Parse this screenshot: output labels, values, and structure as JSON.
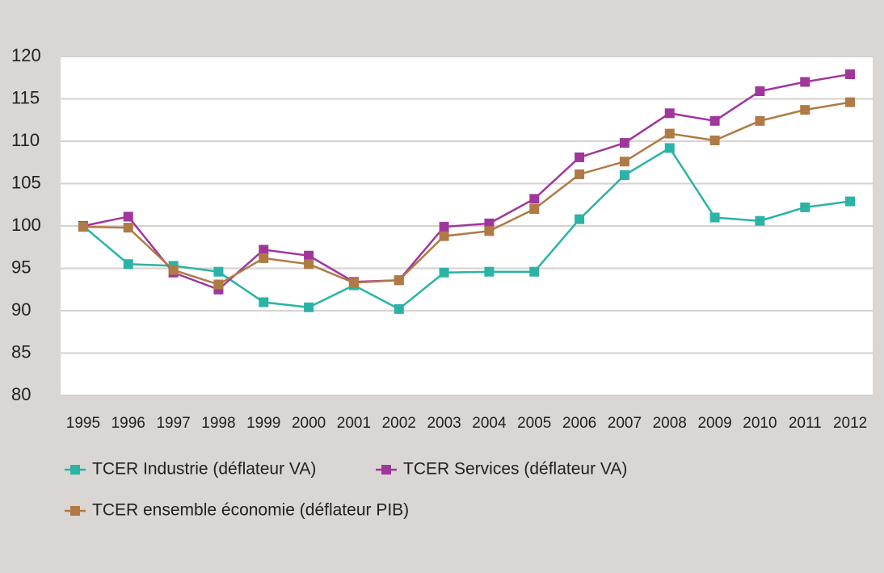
{
  "chart_data": {
    "type": "line",
    "categories": [
      "1995",
      "1996",
      "1997",
      "1998",
      "1999",
      "2000",
      "2001",
      "2002",
      "2003",
      "2004",
      "2005",
      "2006",
      "2007",
      "2008",
      "2009",
      "2010",
      "2011",
      "2012"
    ],
    "series": [
      {
        "name": "TCER Industrie (déflateur VA)",
        "color": "#2bb3a6",
        "values": [
          100,
          95.5,
          95.3,
          94.6,
          91,
          90.4,
          93,
          90.2,
          94.5,
          94.6,
          94.6,
          100.8,
          106,
          109.2,
          101,
          100.6,
          102.2,
          102.9
        ]
      },
      {
        "name": "TCER Services (déflateur VA)",
        "color": "#a0369b",
        "values": [
          100,
          101.1,
          94.5,
          92.5,
          97.2,
          96.5,
          93.4,
          93.6,
          99.9,
          100.3,
          103.2,
          108.1,
          109.8,
          113.3,
          112.4,
          115.9,
          117,
          117.9
        ]
      },
      {
        "name": "TCER ensemble économie (déflateur PIB)",
        "color": "#b07a45",
        "values": [
          99.9,
          99.8,
          94.8,
          93.1,
          96.2,
          95.5,
          93.3,
          93.6,
          98.8,
          99.4,
          102,
          106.1,
          107.6,
          110.9,
          110.1,
          112.4,
          113.7,
          114.6
        ]
      }
    ],
    "ylim": [
      80,
      120
    ],
    "yticks": [
      80,
      85,
      90,
      95,
      100,
      105,
      110,
      115,
      120
    ],
    "grid": true
  }
}
